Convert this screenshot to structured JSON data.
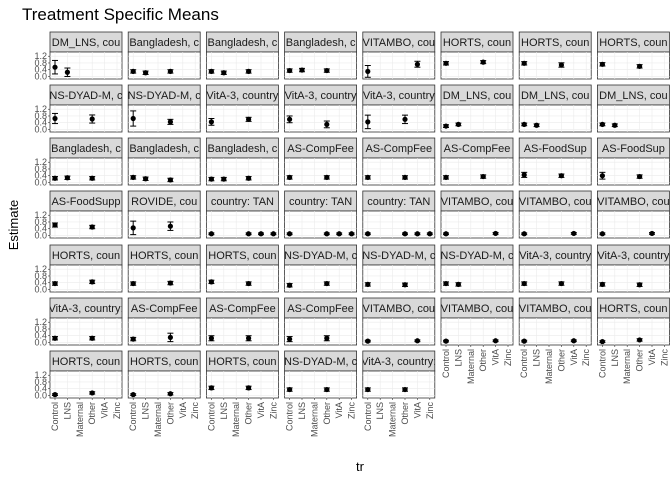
{
  "chart_data": {
    "type": "scatter",
    "title": "Treatment Specific Means",
    "xlabel": "tr",
    "ylabel": "Estimate",
    "categories": [
      "Control",
      "LNS",
      "Maternal",
      "Other",
      "VitA",
      "Zinc"
    ],
    "yticks": [
      0.0,
      0.4,
      0.8,
      1.2
    ],
    "ylim": [
      -0.15,
      1.45
    ],
    "grid": true,
    "layout": {
      "cols": 8,
      "rows": 7
    },
    "panels": [
      {
        "strip": "DM_LNS, cou",
        "points": [
          {
            "x": "Control",
            "y": 0.55,
            "lo": 0.15,
            "hi": 0.95
          },
          {
            "x": "LNS",
            "y": 0.25,
            "lo": 0.0,
            "hi": 0.5
          }
        ]
      },
      {
        "strip": "Bangladesh, c",
        "points": [
          {
            "x": "Control",
            "y": 0.3,
            "lo": 0.2,
            "hi": 0.4
          },
          {
            "x": "LNS",
            "y": 0.22,
            "lo": 0.12,
            "hi": 0.32
          },
          {
            "x": "Other",
            "y": 0.3,
            "lo": 0.2,
            "hi": 0.4
          }
        ]
      },
      {
        "strip": "Bangladesh, c",
        "points": [
          {
            "x": "Control",
            "y": 0.3,
            "lo": 0.2,
            "hi": 0.4
          },
          {
            "x": "LNS",
            "y": 0.22,
            "lo": 0.12,
            "hi": 0.32
          },
          {
            "x": "Other",
            "y": 0.3,
            "lo": 0.2,
            "hi": 0.4
          }
        ]
      },
      {
        "strip": "Bangladesh, c",
        "points": [
          {
            "x": "Control",
            "y": 0.35,
            "lo": 0.25,
            "hi": 0.45
          },
          {
            "x": "LNS",
            "y": 0.38,
            "lo": 0.28,
            "hi": 0.48
          },
          {
            "x": "Other",
            "y": 0.35,
            "lo": 0.25,
            "hi": 0.45
          }
        ]
      },
      {
        "strip": "VITAMBO, cou",
        "points": [
          {
            "x": "Control",
            "y": 0.3,
            "lo": -0.05,
            "hi": 0.65
          },
          {
            "x": "VitA",
            "y": 0.72,
            "lo": 0.55,
            "hi": 0.9
          }
        ]
      },
      {
        "strip": "HORTS, coun",
        "points": [
          {
            "x": "Control",
            "y": 0.78,
            "lo": 0.68,
            "hi": 0.88
          },
          {
            "x": "Other",
            "y": 0.85,
            "lo": 0.76,
            "hi": 0.94
          }
        ]
      },
      {
        "strip": "HORTS, coun",
        "points": [
          {
            "x": "Control",
            "y": 0.78,
            "lo": 0.68,
            "hi": 0.88
          },
          {
            "x": "Other",
            "y": 0.68,
            "lo": 0.55,
            "hi": 0.81
          }
        ]
      },
      {
        "strip": "HORTS, coun",
        "points": [
          {
            "x": "Control",
            "y": 0.72,
            "lo": 0.62,
            "hi": 0.82
          },
          {
            "x": "Other",
            "y": 0.6,
            "lo": 0.5,
            "hi": 0.7
          }
        ]
      },
      {
        "strip": "NS-DYAD-M, c",
        "points": [
          {
            "x": "Control",
            "y": 0.65,
            "lo": 0.35,
            "hi": 0.95
          },
          {
            "x": "Other",
            "y": 0.62,
            "lo": 0.38,
            "hi": 0.86
          }
        ]
      },
      {
        "strip": "NS-DYAD-M, c",
        "points": [
          {
            "x": "Control",
            "y": 0.65,
            "lo": 0.2,
            "hi": 1.1
          },
          {
            "x": "Other",
            "y": 0.45,
            "lo": 0.3,
            "hi": 0.6
          }
        ]
      },
      {
        "strip": "VitA-3, country",
        "points": [
          {
            "x": "Control",
            "y": 0.45,
            "lo": 0.25,
            "hi": 0.65
          },
          {
            "x": "Other",
            "y": 0.6,
            "lo": 0.48,
            "hi": 0.72
          }
        ]
      },
      {
        "strip": "VitA-3, country",
        "points": [
          {
            "x": "Control",
            "y": 0.6,
            "lo": 0.4,
            "hi": 0.8
          },
          {
            "x": "Other",
            "y": 0.3,
            "lo": 0.1,
            "hi": 0.5
          }
        ]
      },
      {
        "strip": "VitA-3, country",
        "points": [
          {
            "x": "Control",
            "y": 0.45,
            "lo": 0.05,
            "hi": 0.85
          },
          {
            "x": "Other",
            "y": 0.6,
            "lo": 0.35,
            "hi": 0.85
          }
        ]
      },
      {
        "strip": "DM_LNS, cou",
        "points": [
          {
            "x": "Control",
            "y": 0.2,
            "lo": 0.12,
            "hi": 0.28
          },
          {
            "x": "LNS",
            "y": 0.3,
            "lo": 0.22,
            "hi": 0.38
          }
        ]
      },
      {
        "strip": "DM_LNS, cou",
        "points": [
          {
            "x": "Control",
            "y": 0.3,
            "lo": 0.22,
            "hi": 0.38
          },
          {
            "x": "LNS",
            "y": 0.25,
            "lo": 0.17,
            "hi": 0.33
          }
        ]
      },
      {
        "strip": "DM_LNS, cou",
        "points": [
          {
            "x": "Control",
            "y": 0.3,
            "lo": 0.22,
            "hi": 0.38
          },
          {
            "x": "LNS",
            "y": 0.25,
            "lo": 0.17,
            "hi": 0.33
          }
        ]
      },
      {
        "strip": "Bangladesh, c",
        "points": [
          {
            "x": "Control",
            "y": 0.25,
            "lo": 0.15,
            "hi": 0.35
          },
          {
            "x": "LNS",
            "y": 0.28,
            "lo": 0.18,
            "hi": 0.38
          },
          {
            "x": "Other",
            "y": 0.25,
            "lo": 0.15,
            "hi": 0.35
          }
        ]
      },
      {
        "strip": "Bangladesh, c",
        "points": [
          {
            "x": "Control",
            "y": 0.3,
            "lo": 0.2,
            "hi": 0.4
          },
          {
            "x": "LNS",
            "y": 0.22,
            "lo": 0.12,
            "hi": 0.32
          },
          {
            "x": "Other",
            "y": 0.15,
            "lo": 0.05,
            "hi": 0.25
          }
        ]
      },
      {
        "strip": "Bangladesh, c",
        "points": [
          {
            "x": "Control",
            "y": 0.2,
            "lo": 0.1,
            "hi": 0.3
          },
          {
            "x": "LNS",
            "y": 0.2,
            "lo": 0.1,
            "hi": 0.3
          },
          {
            "x": "Other",
            "y": 0.25,
            "lo": 0.15,
            "hi": 0.35
          }
        ]
      },
      {
        "strip": "AS-CompFee",
        "points": [
          {
            "x": "Control",
            "y": 0.3,
            "lo": 0.2,
            "hi": 0.4
          },
          {
            "x": "Other",
            "y": 0.3,
            "lo": 0.2,
            "hi": 0.4
          }
        ]
      },
      {
        "strip": "AS-CompFee",
        "points": [
          {
            "x": "Control",
            "y": 0.3,
            "lo": 0.2,
            "hi": 0.4
          },
          {
            "x": "Other",
            "y": 0.3,
            "lo": 0.2,
            "hi": 0.4
          }
        ]
      },
      {
        "strip": "AS-CompFee",
        "points": [
          {
            "x": "Control",
            "y": 0.3,
            "lo": 0.2,
            "hi": 0.4
          },
          {
            "x": "Other",
            "y": 0.35,
            "lo": 0.25,
            "hi": 0.45
          }
        ]
      },
      {
        "strip": "AS-FoodSup",
        "points": [
          {
            "x": "Control",
            "y": 0.45,
            "lo": 0.3,
            "hi": 0.6
          },
          {
            "x": "Other",
            "y": 0.4,
            "lo": 0.3,
            "hi": 0.5
          }
        ]
      },
      {
        "strip": "AS-FoodSup",
        "points": [
          {
            "x": "Control",
            "y": 0.4,
            "lo": 0.2,
            "hi": 0.6
          },
          {
            "x": "Other",
            "y": 0.35,
            "lo": 0.25,
            "hi": 0.45
          }
        ]
      },
      {
        "strip": "AS-FoodSupp",
        "points": [
          {
            "x": "Control",
            "y": 0.62,
            "lo": 0.5,
            "hi": 0.74
          },
          {
            "x": "Other",
            "y": 0.5,
            "lo": 0.4,
            "hi": 0.6
          }
        ]
      },
      {
        "strip": "ROVIDE, cou",
        "points": [
          {
            "x": "Control",
            "y": 0.45,
            "lo": 0.05,
            "hi": 0.85
          },
          {
            "x": "Other",
            "y": 0.55,
            "lo": 0.3,
            "hi": 0.8
          }
        ]
      },
      {
        "strip": "country: TAN",
        "points": [
          {
            "x": "Control",
            "y": 0.1,
            "lo": 0.05,
            "hi": 0.15
          },
          {
            "x": "Other",
            "y": 0.1,
            "lo": 0.05,
            "hi": 0.15
          },
          {
            "x": "VitA",
            "y": 0.1,
            "lo": 0.05,
            "hi": 0.15
          },
          {
            "x": "Zinc",
            "y": 0.1,
            "lo": 0.05,
            "hi": 0.15
          }
        ]
      },
      {
        "strip": "country: TAN",
        "points": [
          {
            "x": "Control",
            "y": 0.1,
            "lo": 0.05,
            "hi": 0.15
          },
          {
            "x": "Other",
            "y": 0.1,
            "lo": 0.05,
            "hi": 0.15
          },
          {
            "x": "VitA",
            "y": 0.1,
            "lo": 0.05,
            "hi": 0.15
          },
          {
            "x": "Zinc",
            "y": 0.1,
            "lo": 0.05,
            "hi": 0.15
          }
        ]
      },
      {
        "strip": "country: TAN",
        "points": [
          {
            "x": "Control",
            "y": 0.1,
            "lo": 0.05,
            "hi": 0.15
          },
          {
            "x": "Other",
            "y": 0.1,
            "lo": 0.05,
            "hi": 0.15
          },
          {
            "x": "VitA",
            "y": 0.1,
            "lo": 0.05,
            "hi": 0.15
          },
          {
            "x": "Zinc",
            "y": 0.1,
            "lo": 0.05,
            "hi": 0.15
          }
        ]
      },
      {
        "strip": "VITAMBO, cou",
        "points": [
          {
            "x": "Control",
            "y": 0.1,
            "lo": 0.05,
            "hi": 0.15
          },
          {
            "x": "VitA",
            "y": 0.12,
            "lo": 0.07,
            "hi": 0.17
          }
        ]
      },
      {
        "strip": "VITAMBO, cou",
        "points": [
          {
            "x": "Control",
            "y": 0.1,
            "lo": 0.05,
            "hi": 0.15
          },
          {
            "x": "VitA",
            "y": 0.12,
            "lo": 0.07,
            "hi": 0.17
          }
        ]
      },
      {
        "strip": "VITAMBO, cou",
        "points": [
          {
            "x": "Control",
            "y": 0.1,
            "lo": 0.05,
            "hi": 0.15
          },
          {
            "x": "VitA",
            "y": 0.12,
            "lo": 0.07,
            "hi": 0.17
          }
        ]
      },
      {
        "strip": "HORTS, coun",
        "points": [
          {
            "x": "Control",
            "y": 0.35,
            "lo": 0.25,
            "hi": 0.45
          },
          {
            "x": "Other",
            "y": 0.45,
            "lo": 0.35,
            "hi": 0.55
          }
        ]
      },
      {
        "strip": "HORTS, coun",
        "points": [
          {
            "x": "Control",
            "y": 0.35,
            "lo": 0.25,
            "hi": 0.45
          },
          {
            "x": "Other",
            "y": 0.38,
            "lo": 0.28,
            "hi": 0.48
          }
        ]
      },
      {
        "strip": "HORTS, coun",
        "points": [
          {
            "x": "Control",
            "y": 0.45,
            "lo": 0.35,
            "hi": 0.55
          },
          {
            "x": "Other",
            "y": 0.35,
            "lo": 0.25,
            "hi": 0.45
          }
        ]
      },
      {
        "strip": "NS-DYAD-M, c",
        "points": [
          {
            "x": "Control",
            "y": 0.25,
            "lo": 0.15,
            "hi": 0.35
          },
          {
            "x": "Other",
            "y": 0.35,
            "lo": 0.25,
            "hi": 0.45
          }
        ]
      },
      {
        "strip": "NS-DYAD-M, c",
        "points": [
          {
            "x": "Control",
            "y": 0.3,
            "lo": 0.2,
            "hi": 0.4
          },
          {
            "x": "Other",
            "y": 0.28,
            "lo": 0.18,
            "hi": 0.38
          }
        ]
      },
      {
        "strip": "NS-DYAD-M, c",
        "points": [
          {
            "x": "Control",
            "y": 0.35,
            "lo": 0.25,
            "hi": 0.45
          },
          {
            "x": "LNS",
            "y": 0.3,
            "lo": 0.2,
            "hi": 0.4
          }
        ]
      },
      {
        "strip": "VitA-3, country",
        "points": [
          {
            "x": "Control",
            "y": 0.35,
            "lo": 0.25,
            "hi": 0.45
          },
          {
            "x": "Other",
            "y": 0.35,
            "lo": 0.25,
            "hi": 0.45
          }
        ]
      },
      {
        "strip": "VitA-3, country",
        "points": [
          {
            "x": "Control",
            "y": 0.3,
            "lo": 0.2,
            "hi": 0.4
          },
          {
            "x": "Other",
            "y": 0.28,
            "lo": 0.18,
            "hi": 0.38
          }
        ]
      },
      {
        "strip": "VitA-3, country:",
        "points": [
          {
            "x": "Control",
            "y": 0.25,
            "lo": 0.15,
            "hi": 0.35
          },
          {
            "x": "Other",
            "y": 0.25,
            "lo": 0.15,
            "hi": 0.35
          }
        ]
      },
      {
        "strip": "AS-CompFee",
        "points": [
          {
            "x": "Control",
            "y": 0.2,
            "lo": 0.1,
            "hi": 0.3
          },
          {
            "x": "Other",
            "y": 0.3,
            "lo": 0.05,
            "hi": 0.55
          }
        ]
      },
      {
        "strip": "AS-CompFee",
        "points": [
          {
            "x": "Control",
            "y": 0.25,
            "lo": 0.1,
            "hi": 0.4
          },
          {
            "x": "Other",
            "y": 0.25,
            "lo": 0.1,
            "hi": 0.4
          }
        ]
      },
      {
        "strip": "AS-CompFee",
        "points": [
          {
            "x": "Control",
            "y": 0.2,
            "lo": 0.05,
            "hi": 0.35
          },
          {
            "x": "Other",
            "y": 0.25,
            "lo": 0.1,
            "hi": 0.4
          }
        ]
      },
      {
        "strip": "VITAMBO, cou",
        "points": [
          {
            "x": "Control",
            "y": 0.08,
            "lo": 0.03,
            "hi": 0.13
          },
          {
            "x": "VitA",
            "y": 0.1,
            "lo": 0.05,
            "hi": 0.15
          }
        ]
      },
      {
        "strip": "VITAMBO, cou",
        "points": [
          {
            "x": "Control",
            "y": 0.08,
            "lo": 0.03,
            "hi": 0.13
          },
          {
            "x": "VitA",
            "y": 0.1,
            "lo": 0.05,
            "hi": 0.15
          }
        ]
      },
      {
        "strip": "VITAMBO, cou",
        "points": [
          {
            "x": "Control",
            "y": 0.08,
            "lo": 0.03,
            "hi": 0.13
          },
          {
            "x": "VitA",
            "y": 0.1,
            "lo": 0.05,
            "hi": 0.15
          }
        ]
      },
      {
        "strip": "HORTS, coun",
        "points": [
          {
            "x": "Control",
            "y": 0.05,
            "lo": 0.0,
            "hi": 0.1
          },
          {
            "x": "Other",
            "y": 0.15,
            "lo": 0.08,
            "hi": 0.22
          }
        ]
      },
      {
        "strip": "HORTS, coun",
        "points": [
          {
            "x": "Control",
            "y": 0.05,
            "lo": 0.0,
            "hi": 0.1
          },
          {
            "x": "Other",
            "y": 0.15,
            "lo": 0.08,
            "hi": 0.22
          }
        ]
      },
      {
        "strip": "HORTS, coun",
        "points": [
          {
            "x": "Control",
            "y": 0.05,
            "lo": 0.0,
            "hi": 0.1
          },
          {
            "x": "Other",
            "y": 0.1,
            "lo": 0.03,
            "hi": 0.17
          }
        ]
      },
      {
        "strip": "HORTS, coun",
        "points": [
          {
            "x": "Control",
            "y": 0.45,
            "lo": 0.35,
            "hi": 0.55
          },
          {
            "x": "Other",
            "y": 0.45,
            "lo": 0.35,
            "hi": 0.55
          }
        ]
      },
      {
        "strip": "NS-DYAD-M, c",
        "points": [
          {
            "x": "Control",
            "y": 0.35,
            "lo": 0.25,
            "hi": 0.45
          },
          {
            "x": "Other",
            "y": 0.35,
            "lo": 0.25,
            "hi": 0.45
          }
        ]
      },
      {
        "strip": "VitA-3, country:",
        "points": [
          {
            "x": "Control",
            "y": 0.35,
            "lo": 0.25,
            "hi": 0.45
          },
          {
            "x": "Other",
            "y": 0.35,
            "lo": 0.25,
            "hi": 0.45
          }
        ]
      }
    ]
  }
}
